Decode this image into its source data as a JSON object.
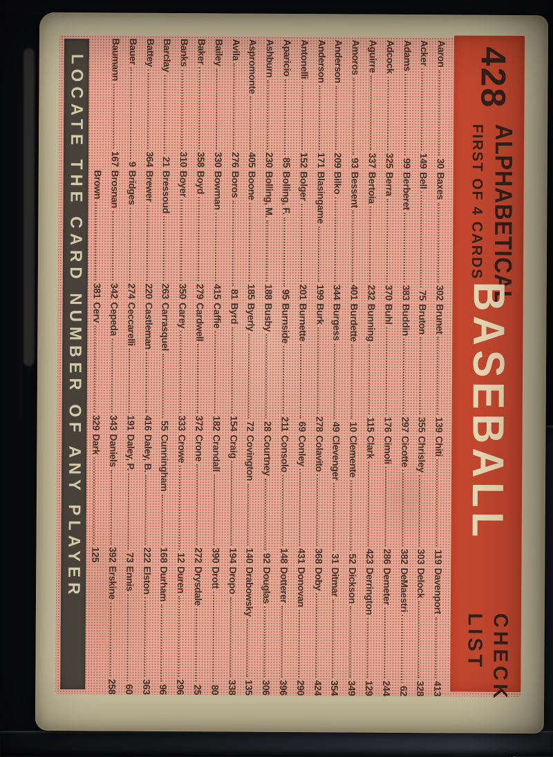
{
  "card": {
    "colors": {
      "banner_red": "#c5482f",
      "pink_halftone": "#e3ac99",
      "halftone_dot": "#c9705a",
      "border_beige": "#cdc2a2",
      "ink_dark": "#45302a",
      "title_cream": "#ead9b5",
      "strip_gray": "#4b443c",
      "strip_text": "#d9cfad",
      "photo_background": "#0e0f13"
    },
    "header": {
      "card_number": "428",
      "series_line": "FIRST OF 4 CARDS",
      "alpha_label": "ALPHABETICAL",
      "title": "BASEBALL",
      "subtitle": "CHECK\nLIST"
    },
    "footer_text": "LOCATE THE CARD NUMBER OF ANY PLAYER",
    "checklist": {
      "columns": [
        {
          "entries": [
            {
              "name": "Aaron",
              "num": "30"
            },
            {
              "name": "Acker",
              "num": "149"
            },
            {
              "name": "Adams",
              "num": "99"
            },
            {
              "name": "Adcock",
              "num": "325"
            },
            {
              "name": "Aguirre",
              "num": "337"
            },
            {
              "name": "Amoros",
              "num": "93"
            },
            {
              "name": "Anderson",
              "num": "209"
            },
            {
              "name": "Anderson",
              "num": "171"
            },
            {
              "name": "Antonelli",
              "num": "152"
            },
            {
              "name": "Aparicio",
              "num": "85"
            },
            {
              "name": "Ashburn",
              "num": "230"
            },
            {
              "name": "Aspromonte",
              "num": "405"
            },
            {
              "name": "Avila",
              "num": "276"
            },
            {
              "name": "Bailey",
              "num": "330"
            },
            {
              "name": "Baker",
              "num": "358"
            },
            {
              "name": "Banks",
              "num": "310"
            },
            {
              "name": "Barclay",
              "num": "21"
            },
            {
              "name": "Battey",
              "num": "364"
            },
            {
              "name": "Bauer",
              "num": "9"
            },
            {
              "name": "Baumann",
              "num": "167"
            }
          ]
        },
        {
          "entries": [
            {
              "name": "Baxes",
              "num": "302"
            },
            {
              "name": "Bell",
              "num": "75"
            },
            {
              "name": "Berberet",
              "num": "383"
            },
            {
              "name": "Berra",
              "num": "370"
            },
            {
              "name": "Bertoia",
              "num": "232"
            },
            {
              "name": "Bessent",
              "num": "401"
            },
            {
              "name": "Bilko",
              "num": "344"
            },
            {
              "name": "Blasingame",
              "num": "199"
            },
            {
              "name": "Bolger",
              "num": "201"
            },
            {
              "name": "Bolling, F.",
              "num": "95"
            },
            {
              "name": "Bolling, M.",
              "num": "188"
            },
            {
              "name": "Boone",
              "num": "185"
            },
            {
              "name": "Boros",
              "num": "81"
            },
            {
              "name": "Bowman",
              "num": "415"
            },
            {
              "name": "Boyd",
              "num": "279"
            },
            {
              "name": "Boyer",
              "num": "350"
            },
            {
              "name": "Bressoud",
              "num": "263"
            },
            {
              "name": "Brewer",
              "num": "220"
            },
            {
              "name": "Bridges",
              "num": "274"
            },
            {
              "name": "Brosnan",
              "num": "342"
            },
            {
              "name": "Brown",
              "num": "381"
            }
          ]
        },
        {
          "entries": [
            {
              "name": "Brunet",
              "num": "139"
            },
            {
              "name": "Bruton",
              "num": "355"
            },
            {
              "name": "Buddin",
              "num": "297"
            },
            {
              "name": "Buhl",
              "num": "176"
            },
            {
              "name": "Bunning",
              "num": "115"
            },
            {
              "name": "Burdette",
              "num": "10"
            },
            {
              "name": "Burgess",
              "num": "49"
            },
            {
              "name": "Burk",
              "num": "278"
            },
            {
              "name": "Burnette",
              "num": "69"
            },
            {
              "name": "Burnside",
              "num": "211"
            },
            {
              "name": "Busby",
              "num": "28"
            },
            {
              "name": "Byerly",
              "num": "72"
            },
            {
              "name": "Byrd",
              "num": "154"
            },
            {
              "name": "Caffie",
              "num": "182"
            },
            {
              "name": "Cardwell",
              "num": "372"
            },
            {
              "name": "Carey",
              "num": "333"
            },
            {
              "name": "Carrasquel",
              "num": "55"
            },
            {
              "name": "Castleman",
              "num": "416"
            },
            {
              "name": "Ceccarelli",
              "num": "191"
            },
            {
              "name": "Cepeda",
              "num": "343"
            },
            {
              "name": "Cerv",
              "num": "329"
            }
          ]
        },
        {
          "entries": [
            {
              "name": "Chiti",
              "num": "119"
            },
            {
              "name": "Chrisley",
              "num": "303"
            },
            {
              "name": "Cicotte",
              "num": "382"
            },
            {
              "name": "Cimoli",
              "num": "286"
            },
            {
              "name": "Clark",
              "num": "423"
            },
            {
              "name": "Clemente",
              "num": "52"
            },
            {
              "name": "Clevenger",
              "num": "31"
            },
            {
              "name": "Colavito",
              "num": "368"
            },
            {
              "name": "Conley",
              "num": "431"
            },
            {
              "name": "Consolo",
              "num": "148"
            },
            {
              "name": "Courtney",
              "num": "92"
            },
            {
              "name": "Covington",
              "num": "140"
            },
            {
              "name": "Craig",
              "num": "194"
            },
            {
              "name": "Crandall",
              "num": "390"
            },
            {
              "name": "Crone",
              "num": "272"
            },
            {
              "name": "Crowe",
              "num": "12"
            },
            {
              "name": "Cunningham",
              "num": "168"
            },
            {
              "name": "Daley, B.",
              "num": "222"
            },
            {
              "name": "Daley, P.",
              "num": "73"
            },
            {
              "name": "Daniels",
              "num": "392"
            },
            {
              "name": "Dark",
              "num": "125"
            }
          ]
        },
        {
          "entries": [
            {
              "name": "Davenport",
              "num": "413"
            },
            {
              "name": "Delock",
              "num": "328"
            },
            {
              "name": "DeMaestri",
              "num": "62"
            },
            {
              "name": "Demeter",
              "num": "244"
            },
            {
              "name": "Derrington",
              "num": "129"
            },
            {
              "name": "Dickson",
              "num": "349"
            },
            {
              "name": "Ditmar",
              "num": "354"
            },
            {
              "name": "Doby",
              "num": "424"
            },
            {
              "name": "Donovan",
              "num": "290"
            },
            {
              "name": "Dotterer",
              "num": "396"
            },
            {
              "name": "Douglas",
              "num": "306"
            },
            {
              "name": "Drabowsky",
              "num": "135"
            },
            {
              "name": "Dropo",
              "num": "338"
            },
            {
              "name": "Drott",
              "num": "80"
            },
            {
              "name": "Drysdale",
              "num": "25"
            },
            {
              "name": "Duren",
              "num": "296"
            },
            {
              "name": "Durham",
              "num": "96"
            },
            {
              "name": "Elston",
              "num": "363"
            },
            {
              "name": "Ennis",
              "num": "60"
            },
            {
              "name": "Erskine",
              "num": "258"
            }
          ]
        }
      ]
    }
  }
}
